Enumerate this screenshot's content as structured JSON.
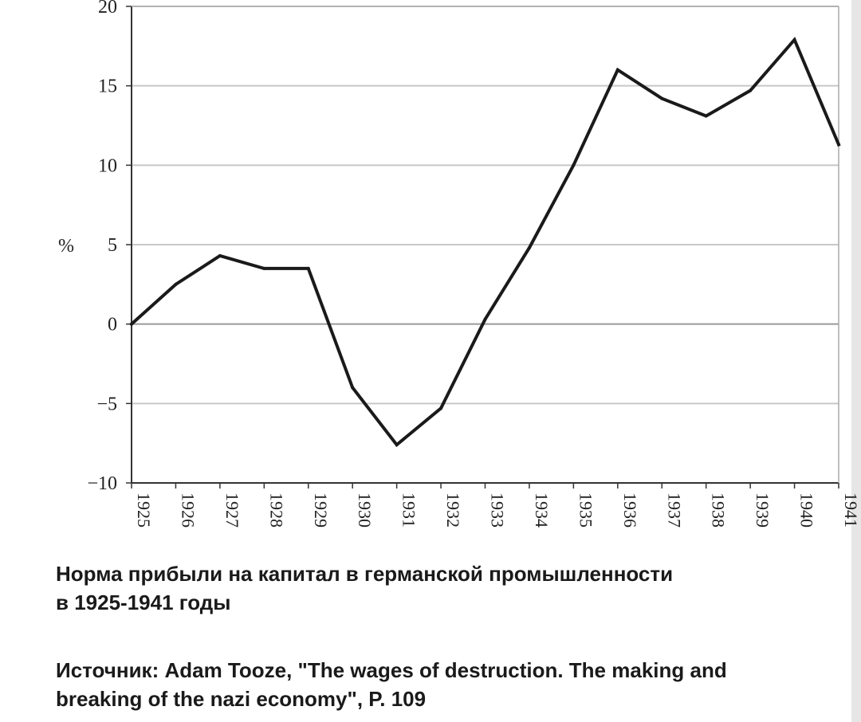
{
  "chart_data": {
    "type": "line",
    "x": [
      "1925",
      "1926",
      "1927",
      "1928",
      "1929",
      "1930",
      "1931",
      "1932",
      "1933",
      "1934",
      "1935",
      "1936",
      "1937",
      "1938",
      "1939",
      "1940",
      "1941"
    ],
    "series": [
      {
        "values": [
          0,
          2.5,
          4.3,
          3.5,
          3.5,
          -4,
          -7.6,
          -5.3,
          0.3,
          4.8,
          10,
          16,
          14.2,
          13.1,
          14.7,
          17.9,
          11.3
        ]
      }
    ],
    "ylim": [
      -10,
      20
    ],
    "yticks": [
      "20",
      "15",
      "10",
      "5",
      "0",
      "−5",
      "−10"
    ],
    "ylabel": "%",
    "xlabel": "",
    "grid": true,
    "line_color": "#1a1a1a",
    "grid_color": "#c8c8c8"
  },
  "caption": {
    "title_line1": "Норма прибыли на капитал в германской промышленности",
    "title_line2": "в 1925-1941 годы",
    "source_line1": "Источник: Adam Tooze, \"The wages of destruction. The making and",
    "source_line2": "breaking of the nazi economy\", P. 109"
  }
}
